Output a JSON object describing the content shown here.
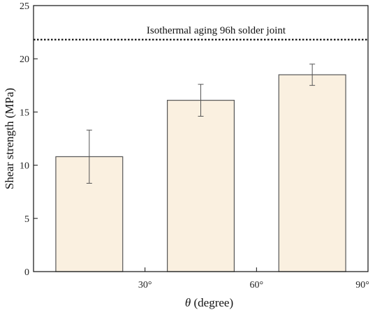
{
  "chart_data": {
    "type": "bar",
    "title": "",
    "xlabel_symbol": "θ",
    "xlabel_unit": " (degree)",
    "ylabel": "Shear strength (MPa)",
    "ylim": [
      0,
      25
    ],
    "yticks": [
      0,
      5,
      10,
      15,
      20,
      25
    ],
    "xlim": [
      0,
      90
    ],
    "xticks": [
      30,
      60,
      90
    ],
    "xtick_labels": [
      "30°",
      "60°",
      "90°"
    ],
    "bar_color": "#faf0e0",
    "bar_edge": "#555555",
    "bars": [
      {
        "x_center": 15,
        "width": 18,
        "value": 10.8,
        "err_low": 8.3,
        "err_high": 13.3
      },
      {
        "x_center": 45,
        "width": 18,
        "value": 16.1,
        "err_low": 14.6,
        "err_high": 17.6
      },
      {
        "x_center": 75,
        "width": 18,
        "value": 18.5,
        "err_low": 17.5,
        "err_high": 19.5
      }
    ],
    "reference_line": {
      "value": 21.8,
      "label": "Isothermal aging 96h solder joint",
      "style": "dotted"
    },
    "grid": false,
    "legend": "none"
  }
}
